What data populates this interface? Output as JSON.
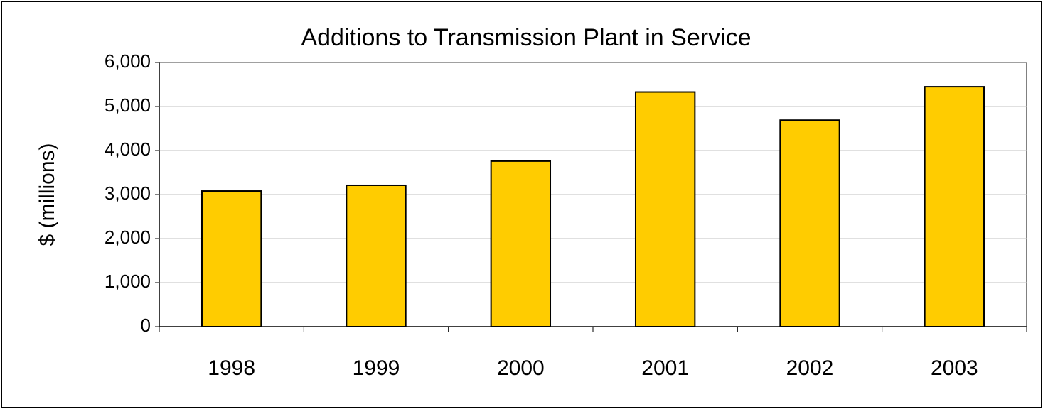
{
  "chart_data": {
    "type": "bar",
    "title": "Additions to Transmission Plant in Service",
    "y_label": "$ (millions)",
    "categories": [
      "1998",
      "1999",
      "2000",
      "2001",
      "2002",
      "2003"
    ],
    "values": [
      3080,
      3210,
      3760,
      5330,
      4690,
      5450
    ],
    "color": "#ffcc00",
    "ylim": [
      0,
      6000
    ],
    "yticks": [
      0,
      {
        "value": 1000,
        "label": "1,000"
      },
      {
        "value": 2000,
        "label": "2,000"
      },
      {
        "value": 3000,
        "label": "3,000"
      },
      {
        "value": 4000,
        "label": "4,000"
      },
      {
        "value": 5000,
        "label": "5,000"
      },
      {
        "value": 6000,
        "label": "6,000"
      }
    ],
    "grid": true
  }
}
